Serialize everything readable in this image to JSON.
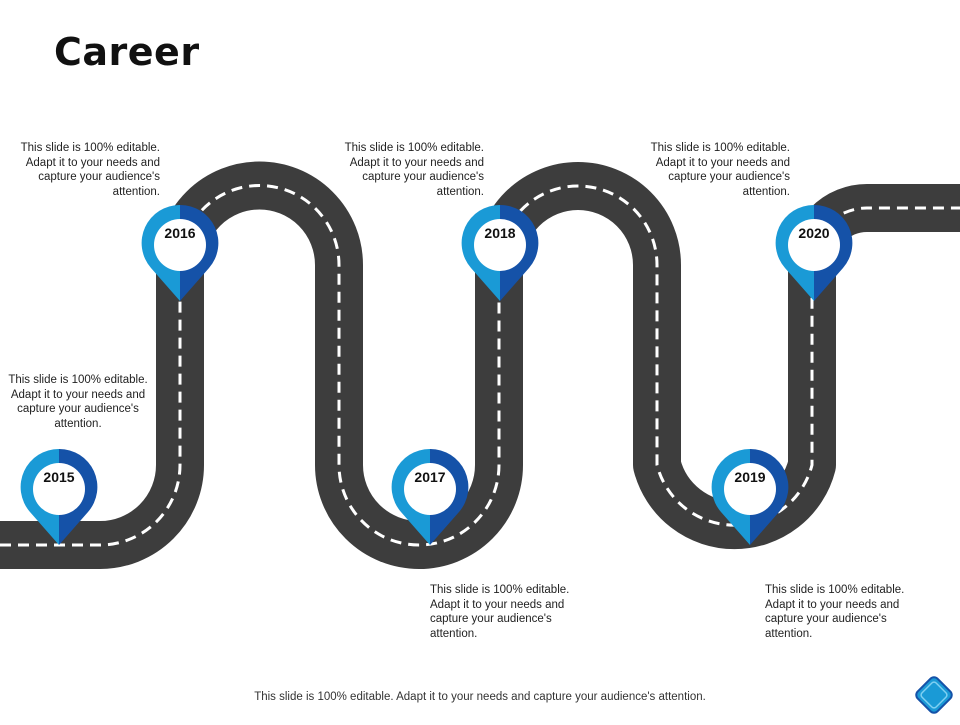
{
  "slide": {
    "title": "Career",
    "footer": "This slide is 100% editable. Adapt it to your needs and capture your audience's attention.",
    "colors": {
      "road": "#3d3d3d",
      "lane": "#ffffff",
      "pin_light": "#1a9ad6",
      "pin_dark": "#1552a8"
    }
  },
  "milestones": [
    {
      "year": "2015",
      "text": "This slide is 100% editable. Adapt it to your needs and capture your audience's attention."
    },
    {
      "year": "2016",
      "text": "This slide is 100% editable. Adapt it to your needs and capture your audience's attention."
    },
    {
      "year": "2017",
      "text": "This slide is 100% editable. Adapt it to your needs and capture your audience's attention."
    },
    {
      "year": "2018",
      "text": "This slide is 100% editable. Adapt it to your needs and capture your audience's attention."
    },
    {
      "year": "2019",
      "text": "This slide is 100% editable. Adapt it to your needs and capture your audience's attention."
    },
    {
      "year": "2020",
      "text": "This slide is 100% editable. Adapt it to your needs and capture your audience's attention."
    }
  ],
  "icons": {
    "nav": "diamond-nav-icon",
    "pin": "map-pin-icon"
  }
}
